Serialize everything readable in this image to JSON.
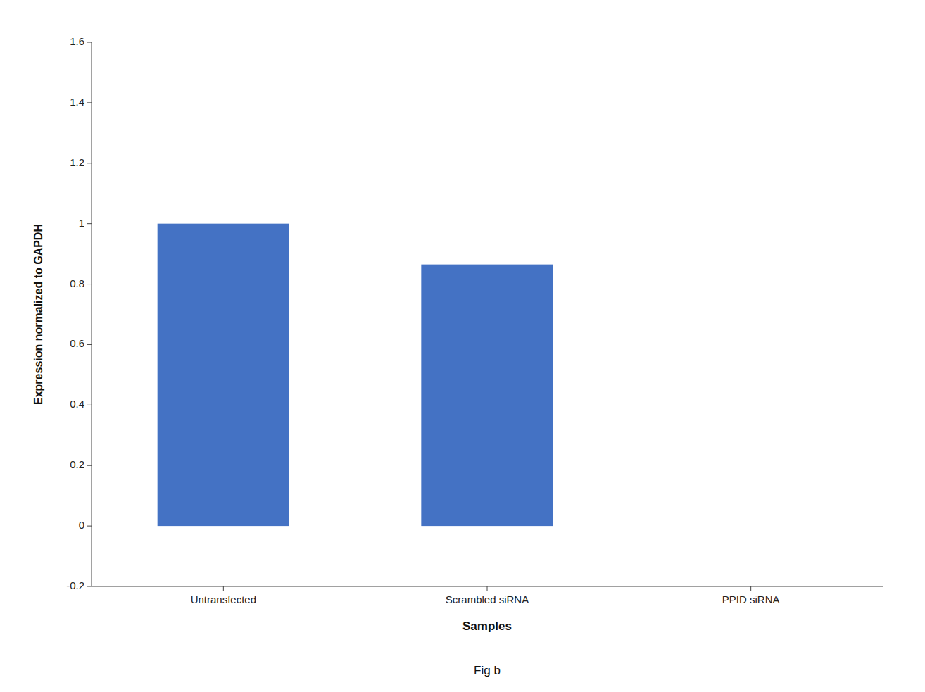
{
  "chart_data": {
    "type": "bar",
    "title": "Fig b",
    "categories": [
      "Untransfected",
      "Scrambled siRNA",
      "PPID siRNA"
    ],
    "values": [
      1.0,
      0.865,
      0.0
    ],
    "color": "#4472C4",
    "xlabel": "Samples",
    "ylabel": "Expression normalized to GAPDH",
    "ylim": [
      -0.2,
      1.6
    ],
    "yticks": [
      -0.2,
      0,
      0.2,
      0.4,
      0.6,
      0.8,
      1,
      1.2,
      1.4,
      1.6
    ],
    "grid": false
  }
}
